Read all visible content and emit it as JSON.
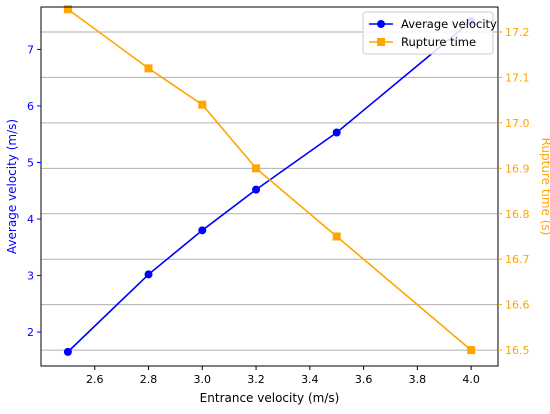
{
  "chart_data": {
    "type": "line",
    "xlabel": "Entrance velocity (m/s)",
    "ylabel_left": "Average velocity (m/s)",
    "ylabel_right": "Rupture time (s)",
    "xlim": [
      2.4,
      4.1
    ],
    "ylim_left": [
      1.4,
      7.75
    ],
    "ylim_right": [
      16.465,
      17.255
    ],
    "x_ticks": [
      2.6,
      2.8,
      3.0,
      3.2,
      3.4,
      3.6,
      3.8,
      4.0
    ],
    "x_tick_labels": [
      "2.6",
      "2.8",
      "3.0",
      "3.2",
      "3.4",
      "3.6",
      "3.8",
      "4.0"
    ],
    "y_left_ticks": [
      2,
      3,
      4,
      5,
      6,
      7
    ],
    "y_left_tick_labels": [
      "2",
      "3",
      "4",
      "5",
      "6",
      "7"
    ],
    "y_right_ticks": [
      16.5,
      16.6,
      16.7,
      16.8,
      16.9,
      17.0,
      17.1,
      17.2
    ],
    "y_right_tick_labels": [
      "16.5",
      "16.6",
      "16.7",
      "16.8",
      "16.9",
      "17.0",
      "17.1",
      "17.2"
    ],
    "grid": "horizontal lines at right-axis ticks",
    "legend_position": "top-right",
    "series": [
      {
        "name": "Average velocity",
        "axis": "left",
        "color": "#0000ff",
        "marker": "circle",
        "x": [
          2.5,
          2.8,
          3.0,
          3.2,
          3.5,
          4.0
        ],
        "values": [
          1.65,
          3.02,
          3.8,
          4.52,
          5.53,
          7.5
        ]
      },
      {
        "name": "Rupture time",
        "axis": "right",
        "color": "#ffa500",
        "marker": "square",
        "x": [
          2.5,
          2.8,
          3.0,
          3.2,
          3.5,
          4.0
        ],
        "values": [
          17.25,
          17.12,
          17.04,
          16.9,
          16.75,
          16.5
        ]
      }
    ]
  }
}
